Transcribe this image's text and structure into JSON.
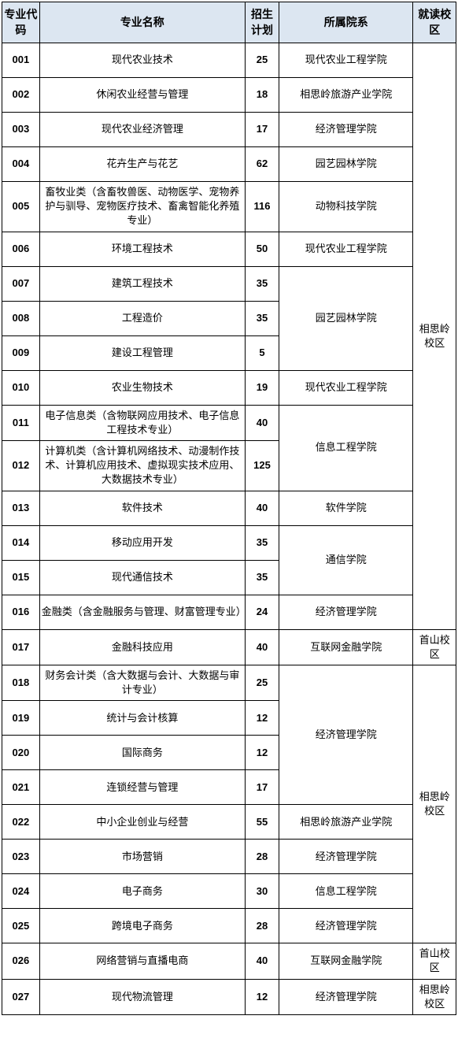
{
  "headers": {
    "code": "专业代码",
    "name": "专业名称",
    "plan": "招生计划",
    "dept": "所属院系",
    "campus": "就读校区"
  },
  "rows": [
    {
      "code": "001",
      "name": "现代农业技术",
      "plan": "25",
      "dept": "现代农业工程学院"
    },
    {
      "code": "002",
      "name": "休闲农业经营与管理",
      "plan": "18",
      "dept": "相思岭旅游产业学院"
    },
    {
      "code": "003",
      "name": "现代农业经济管理",
      "plan": "17",
      "dept": "经济管理学院"
    },
    {
      "code": "004",
      "name": "花卉生产与花艺",
      "plan": "62",
      "dept": "园艺园林学院"
    },
    {
      "code": "005",
      "name": "畜牧业类（含畜牧兽医、动物医学、宠物养护与驯导、宠物医疗技术、畜禽智能化养殖专业）",
      "plan": "116",
      "dept": "动物科技学院"
    },
    {
      "code": "006",
      "name": "环境工程技术",
      "plan": "50",
      "dept": "现代农业工程学院"
    },
    {
      "code": "007",
      "name": "建筑工程技术",
      "plan": "35"
    },
    {
      "code": "008",
      "name": "工程造价",
      "plan": "35"
    },
    {
      "code": "009",
      "name": "建设工程管理",
      "plan": "5"
    },
    {
      "code": "010",
      "name": "农业生物技术",
      "plan": "19",
      "dept": "现代农业工程学院"
    },
    {
      "code": "011",
      "name": "电子信息类（含物联网应用技术、电子信息工程技术专业）",
      "plan": "40"
    },
    {
      "code": "012",
      "name": "计算机类（含计算机网络技术、动漫制作技术、计算机应用技术、虚拟现实技术应用、大数据技术专业）",
      "plan": "125"
    },
    {
      "code": "013",
      "name": "软件技术",
      "plan": "40",
      "dept": "软件学院"
    },
    {
      "code": "014",
      "name": "移动应用开发",
      "plan": "35"
    },
    {
      "code": "015",
      "name": "现代通信技术",
      "plan": "35"
    },
    {
      "code": "016",
      "name": "金融类（含金融服务与管理、财富管理专业）",
      "plan": "24",
      "dept": "经济管理学院"
    },
    {
      "code": "017",
      "name": "金融科技应用",
      "plan": "40",
      "dept": "互联网金融学院"
    },
    {
      "code": "018",
      "name": "财务会计类（含大数据与会计、大数据与审计专业）",
      "plan": "25"
    },
    {
      "code": "019",
      "name": "统计与会计核算",
      "plan": "12"
    },
    {
      "code": "020",
      "name": "国际商务",
      "plan": "12"
    },
    {
      "code": "021",
      "name": "连锁经营与管理",
      "plan": "17"
    },
    {
      "code": "022",
      "name": "中小企业创业与经营",
      "plan": "55",
      "dept": "相思岭旅游产业学院"
    },
    {
      "code": "023",
      "name": "市场营销",
      "plan": "28",
      "dept": "经济管理学院"
    },
    {
      "code": "024",
      "name": "电子商务",
      "plan": "30",
      "dept": "信息工程学院"
    },
    {
      "code": "025",
      "name": "跨境电子商务",
      "plan": "28",
      "dept": "经济管理学院"
    },
    {
      "code": "026",
      "name": "网络营销与直播电商",
      "plan": "40",
      "dept": "互联网金融学院"
    },
    {
      "code": "027",
      "name": "现代物流管理",
      "plan": "12",
      "dept": "经济管理学院"
    }
  ],
  "deptMerges": {
    "group789": {
      "text": "园艺园林学院",
      "start": 7,
      "span": 3
    },
    "group1112": {
      "text": "信息工程学院",
      "start": 11,
      "span": 2
    },
    "group1415": {
      "text": "通信学院",
      "start": 14,
      "span": 2
    },
    "group1821": {
      "text": "经济管理学院",
      "start": 18,
      "span": 4
    }
  },
  "campusMerges": [
    {
      "text": "相思岭校区",
      "start": 1,
      "span": 16
    },
    {
      "text": "首山校区",
      "start": 17,
      "span": 1
    },
    {
      "text": "相思岭校区",
      "start": 18,
      "span": 8
    },
    {
      "text": "首山校区",
      "start": 26,
      "span": 1
    },
    {
      "text": "相思岭校区",
      "start": 27,
      "span": 1
    }
  ],
  "colors": {
    "header_bg": "#dce6f1",
    "border": "#000000",
    "background": "#ffffff",
    "text": "#000000"
  },
  "typography": {
    "header_fontsize": 14,
    "cell_fontsize": 13,
    "font_family": "Microsoft YaHei"
  },
  "column_widths": {
    "code": 42,
    "name": 230,
    "plan": 38,
    "dept": 150,
    "campus": 48
  },
  "table_type": "table"
}
